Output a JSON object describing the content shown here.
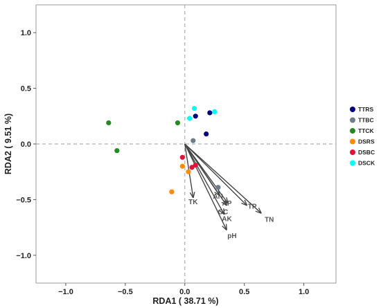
{
  "chart_data": {
    "type": "scatter",
    "xlabel": "RDA1 ( 38.71 %)",
    "ylabel": "RDA2 ( 9.51 %)",
    "xlim": [
      -1.25,
      1.27
    ],
    "ylim": [
      -1.25,
      1.25
    ],
    "x_ticks": [
      "−1.0",
      "−0.5",
      "0.0",
      "0.5",
      "1.0"
    ],
    "x_tick_values": [
      -1.0,
      -0.5,
      0.0,
      0.5,
      1.0
    ],
    "y_ticks": [
      "1.0",
      "0.5",
      "0.0",
      "−0.5",
      "−1.0"
    ],
    "y_tick_values": [
      1.0,
      0.5,
      0.0,
      -0.5,
      -1.0
    ],
    "reference_lines": {
      "x": 0,
      "y": 0,
      "style": "dashed"
    },
    "legend_position": "right",
    "grid": false,
    "series": [
      {
        "name": "TTRS",
        "color": "#000080",
        "points": [
          [
            0.21,
            0.28
          ],
          [
            0.09,
            0.25
          ],
          [
            0.18,
            0.09
          ]
        ]
      },
      {
        "name": "TTBC",
        "color": "#6E7B8B",
        "points": [
          [
            0.07,
            0.03
          ],
          [
            0.28,
            -0.39
          ]
        ]
      },
      {
        "name": "TTCK",
        "color": "#228B22",
        "points": [
          [
            -0.64,
            0.19
          ],
          [
            -0.57,
            -0.06
          ],
          [
            -0.06,
            0.19
          ]
        ]
      },
      {
        "name": "DSRS",
        "color": "#FF8C00",
        "points": [
          [
            -0.11,
            -0.43
          ],
          [
            -0.02,
            -0.2
          ],
          [
            0.03,
            -0.25
          ]
        ]
      },
      {
        "name": "DSBC",
        "color": "#DC143C",
        "points": [
          [
            -0.02,
            -0.12
          ],
          [
            0.06,
            -0.21
          ],
          [
            0.09,
            -0.19
          ]
        ]
      },
      {
        "name": "DSCK",
        "color": "#00FFFF",
        "points": [
          [
            0.08,
            0.32
          ],
          [
            0.25,
            0.29
          ],
          [
            0.04,
            0.23
          ]
        ]
      }
    ],
    "arrows": [
      {
        "label": "TK",
        "end": [
          0.07,
          -0.48
        ]
      },
      {
        "label": "AN",
        "end": [
          0.29,
          -0.46
        ]
      },
      {
        "label": "AP",
        "end": [
          0.36,
          -0.53
        ]
      },
      {
        "label": "OC",
        "end": [
          0.35,
          -0.55
        ]
      },
      {
        "label": "TP",
        "end": [
          0.52,
          -0.55
        ]
      },
      {
        "label": "TN",
        "end": [
          0.64,
          -0.62
        ]
      },
      {
        "label": "AK",
        "end": [
          0.33,
          -0.63
        ]
      },
      {
        "label": "pH",
        "end": [
          0.35,
          -0.77
        ]
      }
    ],
    "arrow_origin": [
      0,
      0
    ]
  }
}
